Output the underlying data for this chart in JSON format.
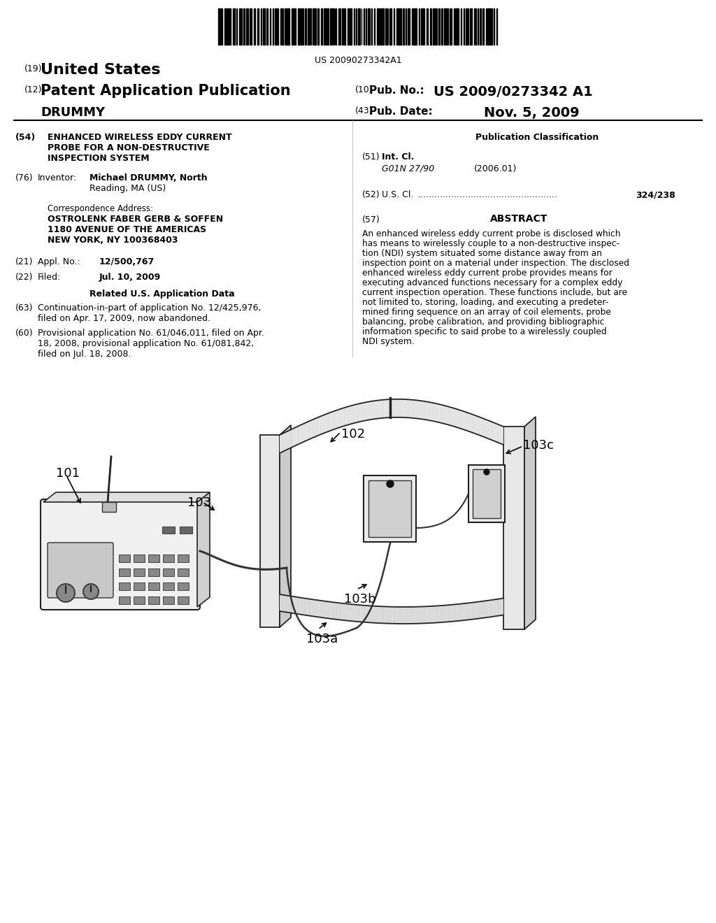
{
  "background_color": "#ffffff",
  "barcode_text": "US 20090273342A1",
  "header": {
    "country_num": "(19)",
    "country": "United States",
    "pub_type_num": "(12)",
    "pub_type": "Patent Application Publication",
    "inventor_surname": "DRUMMY",
    "pub_no_num": "(10)",
    "pub_no_label": "Pub. No.:",
    "pub_no": "US 2009/0273342 A1",
    "pub_date_num": "(43)",
    "pub_date_label": "Pub. Date:",
    "pub_date": "Nov. 5, 2009"
  },
  "left_col": {
    "title_num": "(54)",
    "title_line1": "ENHANCED WIRELESS EDDY CURRENT",
    "title_line2": "PROBE FOR A NON-DESTRUCTIVE",
    "title_line3": "INSPECTION SYSTEM",
    "inventor_num": "(76)",
    "inventor_label": "Inventor:",
    "inventor_name": "Michael DRUMMY, North",
    "inventor_city": "Reading, MA (US)",
    "corr_label": "Correspondence Address:",
    "corr_line1": "OSTROLENK FABER GERB & SOFFEN",
    "corr_line2": "1180 AVENUE OF THE AMERICAS",
    "corr_line3": "NEW YORK, NY 100368403",
    "appl_num": "(21)",
    "appl_label": "Appl. No.:",
    "appl_no": "12/500,767",
    "filed_num": "(22)",
    "filed_label": "Filed:",
    "filed_date": "Jul. 10, 2009",
    "related_header": "Related U.S. Application Data",
    "cont_num": "(63)",
    "cont_text1": "Continuation-in-part of application No. 12/425,976,",
    "cont_text2": "filed on Apr. 17, 2009, now abandoned.",
    "prov_num": "(60)",
    "prov_text1": "Provisional application No. 61/046,011, filed on Apr.",
    "prov_text2": "18, 2008, provisional application No. 61/081,842,",
    "prov_text3": "filed on Jul. 18, 2008."
  },
  "right_col": {
    "pub_class_header": "Publication Classification",
    "int_cl_num": "(51)",
    "int_cl_label": "Int. Cl.",
    "int_cl_code": "G01N 27/90",
    "int_cl_date": "(2006.01)",
    "us_cl_num": "(52)",
    "us_cl_label": "U.S. Cl.",
    "us_cl_val": "324/238",
    "abstract_num": "(57)",
    "abstract_header": "ABSTRACT",
    "abstract_lines": [
      "An enhanced wireless eddy current probe is disclosed which",
      "has means to wirelessly couple to a non-destructive inspec-",
      "tion (NDI) system situated some distance away from an",
      "inspection point on a material under inspection. The disclosed",
      "enhanced wireless eddy current probe provides means for",
      "executing advanced functions necessary for a complex eddy",
      "current inspection operation. These functions include, but are",
      "not limited to, storing, loading, and executing a predeter-",
      "mined firing sequence on an array of coil elements, probe",
      "balancing, probe calibration, and providing bibliographic",
      "information specific to said probe to a wirelessly coupled",
      "NDI system."
    ]
  },
  "diagram_labels": {
    "label_101": "101",
    "label_102": "102",
    "label_103": "103",
    "label_103a": "103a",
    "label_103b": "103b",
    "label_103c": "103c"
  }
}
